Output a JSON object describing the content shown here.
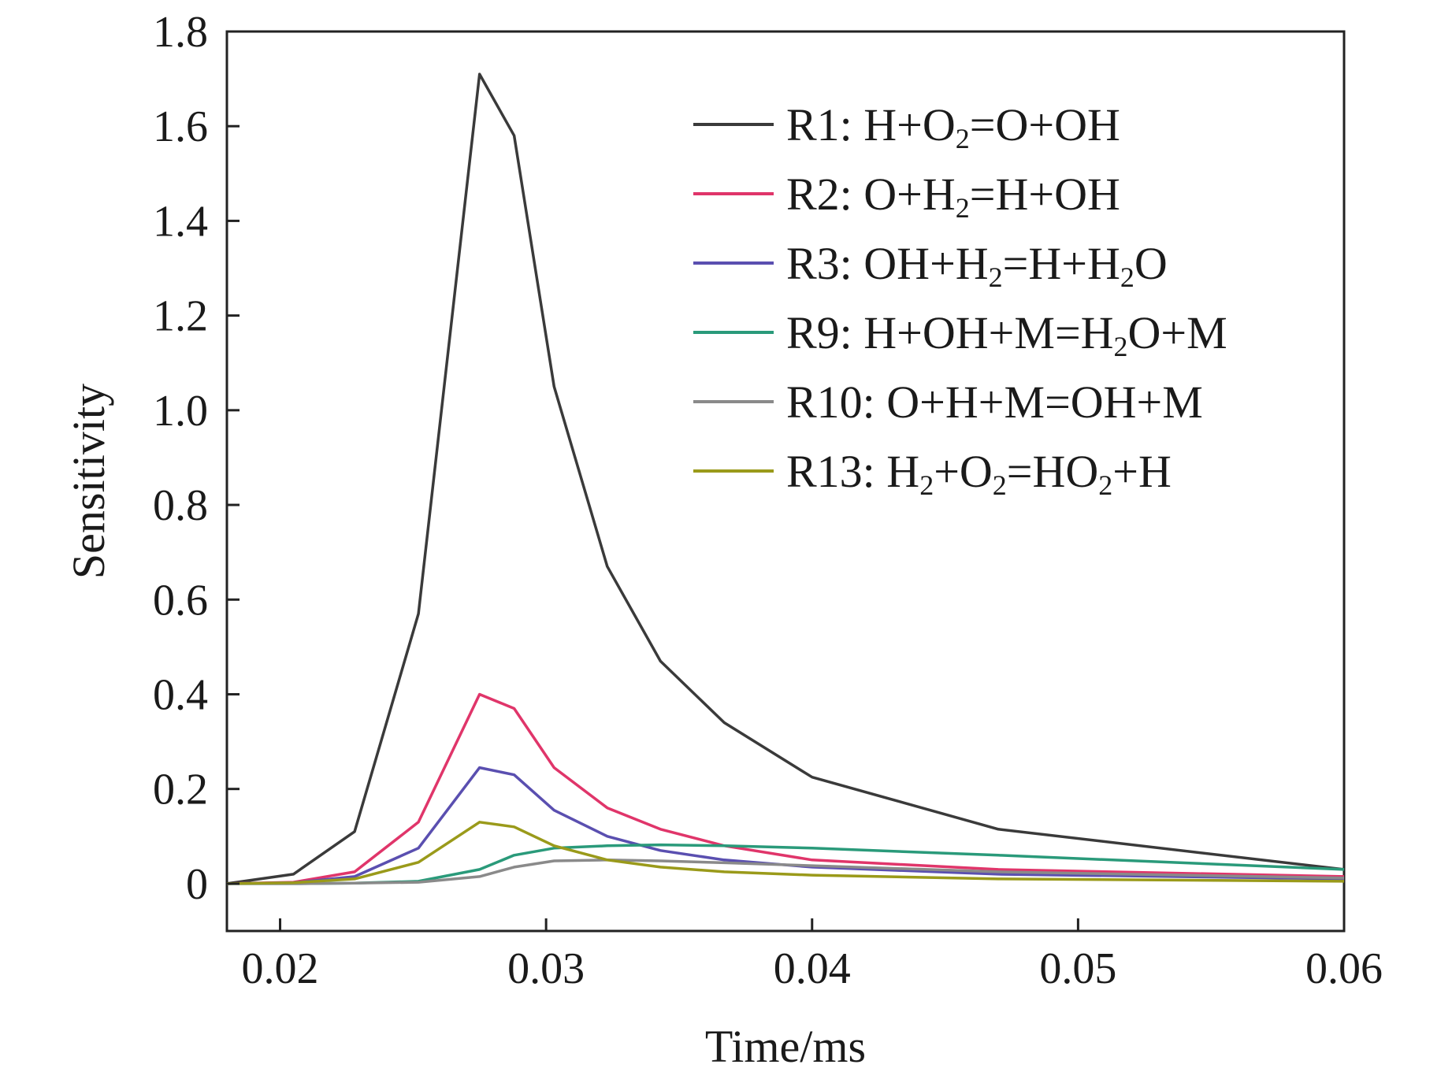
{
  "chart_data": {
    "type": "line",
    "xlabel": "Time/ms",
    "ylabel": "Sensitivity",
    "xlim": [
      0.018,
      0.06
    ],
    "ylim": [
      -0.1,
      1.8
    ],
    "x_ticks": [
      0.02,
      0.03,
      0.04,
      0.05,
      0.06
    ],
    "x_tick_labels": [
      "0.02",
      "0.03",
      "0.04",
      "0.05",
      "0.06"
    ],
    "y_ticks": [
      0,
      0.2,
      0.4,
      0.6,
      0.8,
      1.0,
      1.2,
      1.4,
      1.6,
      1.8
    ],
    "y_tick_labels": [
      "0",
      "0.2",
      "0.4",
      "0.6",
      "0.8",
      "1.0",
      "1.2",
      "1.4",
      "1.6",
      "1.8"
    ],
    "grid": false,
    "legend_position": "top-right",
    "series": [
      {
        "name": "R1: H+O2=O+OH",
        "legend": [
          {
            "t": "R1: H+O"
          },
          {
            "t": "2",
            "sub": true
          },
          {
            "t": "=O+OH"
          }
        ],
        "color": "#3a3a3a",
        "x": [
          0.018,
          0.0205,
          0.0228,
          0.0252,
          0.0275,
          0.0288,
          0.0303,
          0.0323,
          0.0343,
          0.0367,
          0.04,
          0.047,
          0.06
        ],
        "values": [
          0.0,
          0.02,
          0.11,
          0.57,
          1.71,
          1.58,
          1.05,
          0.67,
          0.47,
          0.34,
          0.225,
          0.115,
          0.03
        ]
      },
      {
        "name": "R2: O+H2=H+OH",
        "legend": [
          {
            "t": "R2: O+H"
          },
          {
            "t": "2",
            "sub": true
          },
          {
            "t": "=H+OH"
          }
        ],
        "color": "#e0356a",
        "x": [
          0.018,
          0.0205,
          0.0228,
          0.0252,
          0.0275,
          0.0288,
          0.0303,
          0.0323,
          0.0343,
          0.0367,
          0.04,
          0.047,
          0.06
        ],
        "values": [
          0.0,
          0.003,
          0.025,
          0.13,
          0.4,
          0.37,
          0.245,
          0.16,
          0.115,
          0.08,
          0.05,
          0.03,
          0.015
        ]
      },
      {
        "name": "R3: OH+H2=H+H2O",
        "legend": [
          {
            "t": "R3: OH+H"
          },
          {
            "t": "2",
            "sub": true
          },
          {
            "t": "=H+H"
          },
          {
            "t": "2",
            "sub": true
          },
          {
            "t": "O"
          }
        ],
        "color": "#5a4fb0",
        "x": [
          0.018,
          0.0205,
          0.0228,
          0.0252,
          0.0275,
          0.0288,
          0.0303,
          0.0323,
          0.0343,
          0.0367,
          0.04,
          0.047,
          0.06
        ],
        "values": [
          0.0,
          0.002,
          0.015,
          0.075,
          0.245,
          0.23,
          0.155,
          0.1,
          0.07,
          0.05,
          0.035,
          0.02,
          0.01
        ]
      },
      {
        "name": "R9: H+OH+M=H2O+M",
        "legend": [
          {
            "t": "R9: H+OH+M=H"
          },
          {
            "t": "2",
            "sub": true
          },
          {
            "t": "O+M"
          }
        ],
        "color": "#2a9a7a",
        "x": [
          0.018,
          0.0205,
          0.0228,
          0.0252,
          0.0275,
          0.0288,
          0.0303,
          0.0323,
          0.0343,
          0.0367,
          0.04,
          0.047,
          0.06
        ],
        "values": [
          0.0,
          0.0,
          0.001,
          0.005,
          0.03,
          0.06,
          0.075,
          0.08,
          0.082,
          0.08,
          0.075,
          0.06,
          0.03
        ]
      },
      {
        "name": "R10: O+H+M=OH+M",
        "legend": [
          {
            "t": "R10: O+H+M=OH+M"
          }
        ],
        "color": "#8a8a8a",
        "x": [
          0.018,
          0.0205,
          0.0228,
          0.0252,
          0.0275,
          0.0288,
          0.0303,
          0.0323,
          0.0343,
          0.0367,
          0.04,
          0.047,
          0.06
        ],
        "values": [
          0.0,
          0.0,
          0.001,
          0.003,
          0.015,
          0.035,
          0.048,
          0.05,
          0.048,
          0.044,
          0.038,
          0.025,
          0.012
        ]
      },
      {
        "name": "R13: H2+O2=HO2+H",
        "legend": [
          {
            "t": "R13: H"
          },
          {
            "t": "2",
            "sub": true
          },
          {
            "t": "+O"
          },
          {
            "t": "2",
            "sub": true
          },
          {
            "t": "=HO"
          },
          {
            "t": "2",
            "sub": true
          },
          {
            "t": "+H"
          }
        ],
        "color": "#9a9a1a",
        "x": [
          0.018,
          0.0205,
          0.0228,
          0.0252,
          0.0275,
          0.0288,
          0.0303,
          0.0323,
          0.0343,
          0.0367,
          0.04,
          0.047,
          0.06
        ],
        "values": [
          0.0,
          0.002,
          0.01,
          0.045,
          0.13,
          0.12,
          0.08,
          0.05,
          0.035,
          0.025,
          0.018,
          0.01,
          0.005
        ]
      }
    ]
  }
}
